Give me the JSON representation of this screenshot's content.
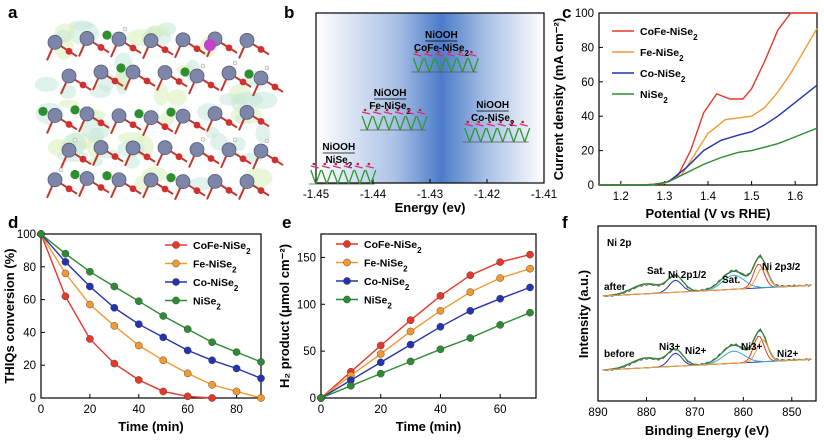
{
  "panel_labels": [
    "a",
    "b",
    "c",
    "d",
    "e",
    "f"
  ],
  "chart_data": [
    {
      "panel": "b",
      "type": "scatter",
      "xlabel": "Energy (ev)",
      "ylabel": "",
      "xlim": [
        -1.45,
        -1.41
      ],
      "x_ticks": [
        "-1.45",
        "-1.44",
        "-1.43",
        "-1.42",
        "-1.41"
      ],
      "annotations": [
        {
          "label_top": "NiOOH",
          "label_bottom": "NiSe2",
          "x": -1.446
        },
        {
          "label_top": "NiOOH",
          "label_bottom": "Fe-NiSe2",
          "x": -1.437
        },
        {
          "label_top": "NiOOH",
          "label_bottom": "CoFe-NiSe2",
          "x": -1.428
        },
        {
          "label_top": "NiOOH",
          "label_bottom": "Co-NiSe2",
          "x": -1.419
        }
      ]
    },
    {
      "panel": "c",
      "type": "line",
      "xlabel": "Potential (V vs RHE)",
      "ylabel": "Current density (mA cm⁻²)",
      "xlim": [
        1.15,
        1.65
      ],
      "ylim": [
        0,
        100
      ],
      "x_ticks": [
        "1.2",
        "1.3",
        "1.4",
        "1.5",
        "1.6"
      ],
      "y_ticks": [
        "0",
        "20",
        "40",
        "60",
        "80",
        "100"
      ],
      "legend_position": "top-left",
      "series": [
        {
          "name": "CoFe-NiSe2",
          "color": "#e8382a",
          "x": [
            1.15,
            1.25,
            1.3,
            1.33,
            1.36,
            1.39,
            1.42,
            1.45,
            1.48,
            1.5,
            1.53,
            1.56,
            1.59,
            1.62,
            1.65
          ],
          "y": [
            0,
            0,
            1,
            5,
            20,
            42,
            53,
            50,
            50,
            56,
            72,
            90,
            100,
            100,
            100
          ]
        },
        {
          "name": "Fe-NiSe2",
          "color": "#f19a32",
          "x": [
            1.15,
            1.26,
            1.3,
            1.34,
            1.37,
            1.4,
            1.44,
            1.47,
            1.5,
            1.53,
            1.56,
            1.59,
            1.62,
            1.65
          ],
          "y": [
            0,
            0,
            1,
            6,
            18,
            30,
            38,
            39,
            40,
            45,
            54,
            65,
            78,
            91
          ]
        },
        {
          "name": "Co-NiSe2",
          "color": "#2433b0",
          "x": [
            1.15,
            1.27,
            1.31,
            1.35,
            1.39,
            1.43,
            1.47,
            1.5,
            1.53,
            1.56,
            1.59,
            1.62,
            1.65
          ],
          "y": [
            0,
            0,
            2,
            10,
            20,
            26,
            29,
            31,
            35,
            40,
            46,
            52,
            58
          ]
        },
        {
          "name": "NiSe2",
          "color": "#2e8a34",
          "x": [
            1.15,
            1.27,
            1.31,
            1.35,
            1.39,
            1.43,
            1.47,
            1.5,
            1.53,
            1.56,
            1.59,
            1.62,
            1.65
          ],
          "y": [
            0,
            0,
            2,
            7,
            12,
            16,
            19,
            20,
            22,
            24,
            27,
            30,
            33
          ]
        }
      ]
    },
    {
      "panel": "d",
      "type": "line",
      "xlabel": "Time (min)",
      "ylabel": "THIQs conversion (%)",
      "xlim": [
        0,
        90
      ],
      "ylim": [
        0,
        100
      ],
      "x_ticks": [
        "0",
        "20",
        "40",
        "60",
        "80"
      ],
      "y_ticks": [
        "0",
        "20",
        "40",
        "60",
        "80",
        "100"
      ],
      "legend_position": "top-right",
      "series": [
        {
          "name": "CoFe-NiSe2",
          "color": "#e8382a",
          "x": [
            0,
            10,
            20,
            30,
            40,
            50,
            60,
            70
          ],
          "y": [
            100,
            62,
            36,
            21,
            11,
            4,
            1,
            0
          ]
        },
        {
          "name": "Fe-NiSe2",
          "color": "#f19a32",
          "x": [
            0,
            10,
            20,
            30,
            40,
            50,
            60,
            70,
            80,
            90
          ],
          "y": [
            100,
            76,
            57,
            44,
            32,
            23,
            15,
            8,
            4,
            0
          ]
        },
        {
          "name": "Co-NiSe2",
          "color": "#2433b0",
          "x": [
            0,
            10,
            20,
            30,
            40,
            50,
            60,
            70,
            80,
            90
          ],
          "y": [
            100,
            83,
            68,
            55,
            45,
            37,
            29,
            23,
            18,
            12
          ]
        },
        {
          "name": "NiSe2",
          "color": "#2e8a34",
          "x": [
            0,
            10,
            20,
            30,
            40,
            50,
            60,
            70,
            80,
            90
          ],
          "y": [
            100,
            88,
            77,
            68,
            59,
            50,
            42,
            34,
            28,
            22
          ]
        }
      ]
    },
    {
      "panel": "e",
      "type": "line",
      "xlabel": "Time (min)",
      "ylabel": "H₂ product (μmol cm⁻²)",
      "xlim": [
        0,
        72
      ],
      "ylim": [
        0,
        175
      ],
      "x_ticks": [
        "0",
        "20",
        "40",
        "60"
      ],
      "y_ticks": [
        "0",
        "50",
        "100",
        "150"
      ],
      "legend_position": "top-left",
      "series": [
        {
          "name": "CoFe-NiSe2",
          "color": "#e8382a",
          "x": [
            0,
            10,
            20,
            30,
            40,
            50,
            60,
            70
          ],
          "y": [
            0,
            28,
            56,
            83,
            109,
            131,
            145,
            153
          ]
        },
        {
          "name": "Fe-NiSe2",
          "color": "#f19a32",
          "x": [
            0,
            10,
            20,
            30,
            40,
            50,
            60,
            70
          ],
          "y": [
            0,
            24,
            47,
            71,
            93,
            113,
            128,
            138
          ]
        },
        {
          "name": "Co-NiSe2",
          "color": "#2433b0",
          "x": [
            0,
            10,
            20,
            30,
            40,
            50,
            60,
            70
          ],
          "y": [
            0,
            19,
            38,
            57,
            76,
            93,
            106,
            118
          ]
        },
        {
          "name": "NiSe2",
          "color": "#2e8a34",
          "x": [
            0,
            10,
            20,
            30,
            40,
            50,
            60,
            70
          ],
          "y": [
            0,
            13,
            26,
            39,
            52,
            64,
            78,
            91
          ]
        }
      ]
    },
    {
      "panel": "f",
      "type": "line",
      "title": "Ni 2p",
      "xlabel": "Binding Energy (eV)",
      "ylabel": "Intensity (a.u.)",
      "xlim": [
        890,
        845
      ],
      "x_ticks": [
        "890",
        "880",
        "870",
        "860",
        "850"
      ],
      "traces": [
        "after",
        "before"
      ],
      "peak_labels": [
        "Sat.",
        "Ni 2p1/2",
        "Sat.",
        "Ni 2p3/2",
        "Ni3+",
        "Ni2+",
        "Ni3+",
        "Ni2+"
      ]
    }
  ],
  "legend_labels": [
    "CoFe-NiSe2",
    "Fe-NiSe2",
    "Co-NiSe2",
    "NiSe2"
  ],
  "xps_labels": {
    "title": "Ni 2p",
    "after": "after",
    "before": "before",
    "sat1": "Sat.",
    "sat2": "Sat.",
    "p12": "Ni 2p1/2",
    "p32": "Ni 2p3/2",
    "ni3a": "Ni3+",
    "ni2a": "Ni2+",
    "ni3b": "Ni3+",
    "ni2b": "Ni2+"
  }
}
